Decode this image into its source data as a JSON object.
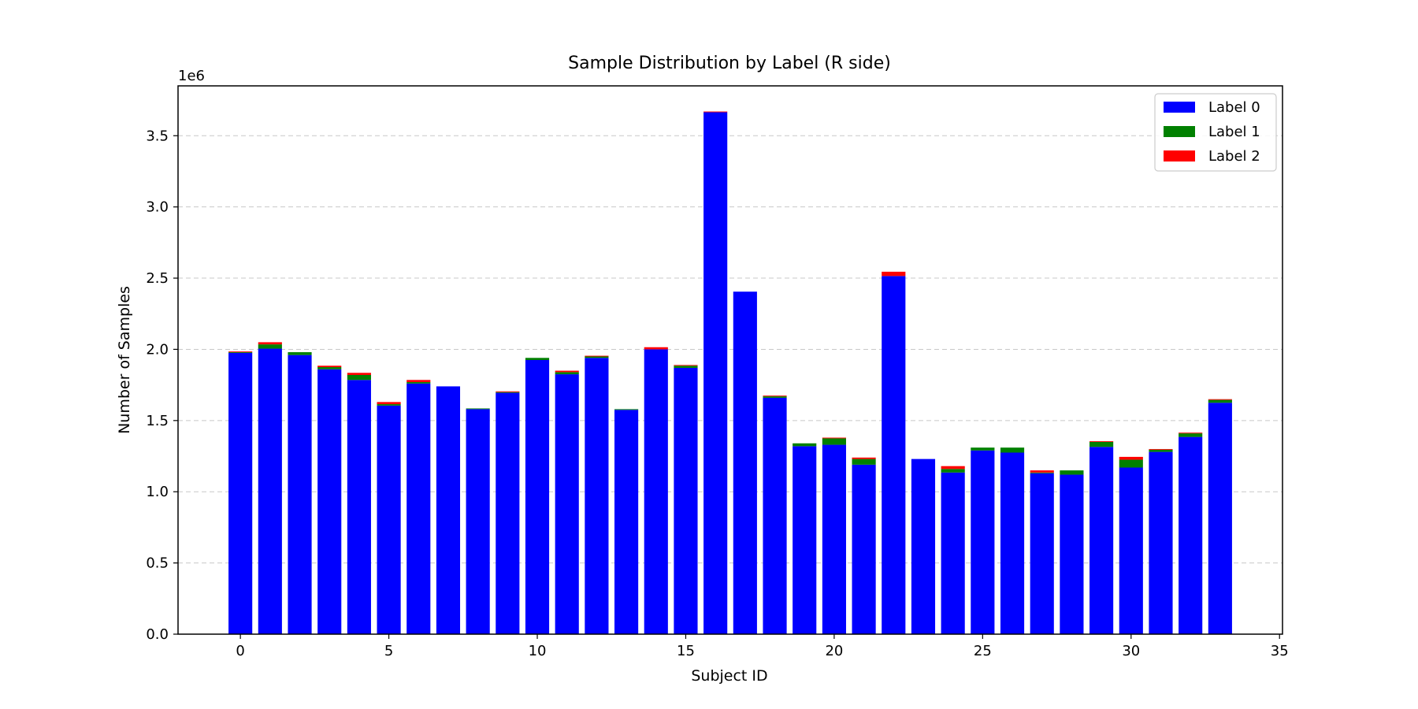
{
  "chart_data": {
    "type": "bar",
    "stacked": true,
    "title": "Sample Distribution by Label (R side)",
    "xlabel": "Subject ID",
    "ylabel": "Number of Samples",
    "y_offset_text": "1e6",
    "xlim": [
      -2.1,
      35.1
    ],
    "ylim": [
      0,
      3.85
    ],
    "y_unit_multiplier": 1000000,
    "xticks": [
      0,
      5,
      10,
      15,
      20,
      25,
      30,
      35
    ],
    "yticks": [
      0.0,
      0.5,
      1.0,
      1.5,
      2.0,
      2.5,
      3.0,
      3.5
    ],
    "ytick_labels": [
      "0.0",
      "0.5",
      "1.0",
      "1.5",
      "2.0",
      "2.5",
      "3.0",
      "3.5"
    ],
    "grid": "y-dashed",
    "legend_position": "top-right",
    "x": [
      0,
      1,
      2,
      3,
      4,
      5,
      6,
      7,
      8,
      9,
      10,
      11,
      12,
      13,
      14,
      15,
      16,
      17,
      18,
      19,
      20,
      21,
      22,
      23,
      24,
      25,
      26,
      27,
      28,
      29,
      30,
      31,
      32,
      33
    ],
    "series": [
      {
        "name": "Label 0",
        "color": "#0000ff",
        "values": [
          1.975,
          2.005,
          1.96,
          1.86,
          1.785,
          1.605,
          1.76,
          1.74,
          1.58,
          1.695,
          1.925,
          1.825,
          1.94,
          1.575,
          2.0,
          1.87,
          3.665,
          2.405,
          1.66,
          1.32,
          1.33,
          1.19,
          2.515,
          1.23,
          1.135,
          1.29,
          1.275,
          1.13,
          1.12,
          1.315,
          1.17,
          1.28,
          1.385,
          1.625
        ]
      },
      {
        "name": "Label 1",
        "color": "#008000",
        "values": [
          0.005,
          0.03,
          0.02,
          0.015,
          0.035,
          0.01,
          0.01,
          0.0,
          0.005,
          0.005,
          0.015,
          0.015,
          0.01,
          0.005,
          0.0,
          0.015,
          0.0,
          0.0,
          0.01,
          0.02,
          0.045,
          0.04,
          0.0,
          0.0,
          0.025,
          0.02,
          0.035,
          0.005,
          0.03,
          0.035,
          0.055,
          0.015,
          0.025,
          0.02
        ]
      },
      {
        "name": "Label 2",
        "color": "#ff0000",
        "values": [
          0.005,
          0.015,
          0.0,
          0.01,
          0.015,
          0.015,
          0.015,
          0.0,
          0.0,
          0.005,
          0.0,
          0.01,
          0.005,
          0.0,
          0.015,
          0.005,
          0.005,
          0.0,
          0.005,
          0.0,
          0.005,
          0.01,
          0.03,
          0.0,
          0.02,
          0.0,
          0.0,
          0.015,
          0.0,
          0.005,
          0.02,
          0.005,
          0.005,
          0.005
        ]
      }
    ]
  }
}
